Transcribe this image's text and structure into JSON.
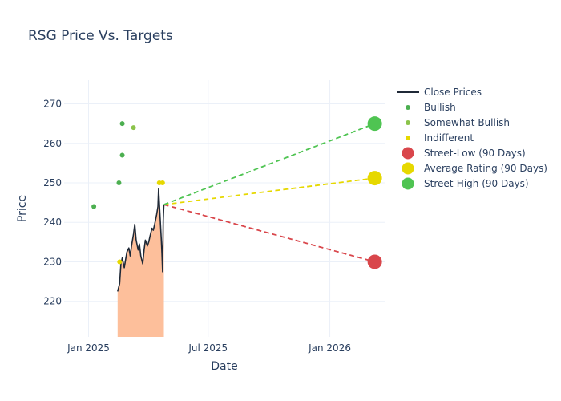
{
  "chart_data": {
    "type": "line",
    "title": "RSG Price Vs. Targets",
    "xlabel": "Date",
    "ylabel": "Price",
    "ylim": [
      211,
      276
    ],
    "xlim": [
      "2024-11-25",
      "2026-03-25"
    ],
    "x_ticks": [
      {
        "date": "2025-01-01",
        "label": "Jan 2025"
      },
      {
        "date": "2025-07-01",
        "label": "Jul 2025"
      },
      {
        "date": "2026-01-01",
        "label": "Jan 2026"
      }
    ],
    "y_ticks": [
      220,
      230,
      240,
      250,
      260,
      270
    ],
    "grid": true,
    "legend_position": "top-right",
    "close_prices": {
      "name": "Close Prices",
      "color": "#1f2937",
      "fill_color": "#fdbf9b",
      "points": [
        [
          "2025-02-14",
          222.5
        ],
        [
          "2025-02-17",
          224.5
        ],
        [
          "2025-02-19",
          229.5
        ],
        [
          "2025-02-21",
          231.0
        ],
        [
          "2025-02-24",
          228.5
        ],
        [
          "2025-02-26",
          230.5
        ],
        [
          "2025-02-28",
          232.5
        ],
        [
          "2025-03-03",
          233.5
        ],
        [
          "2025-03-05",
          231.5
        ],
        [
          "2025-03-07",
          234.0
        ],
        [
          "2025-03-10",
          237.0
        ],
        [
          "2025-03-12",
          239.5
        ],
        [
          "2025-03-14",
          235.5
        ],
        [
          "2025-03-17",
          233.0
        ],
        [
          "2025-03-19",
          234.5
        ],
        [
          "2025-03-21",
          231.5
        ],
        [
          "2025-03-24",
          229.5
        ],
        [
          "2025-03-26",
          233.0
        ],
        [
          "2025-03-28",
          235.5
        ],
        [
          "2025-03-31",
          234.0
        ],
        [
          "2025-04-02",
          235.0
        ],
        [
          "2025-04-04",
          236.5
        ],
        [
          "2025-04-07",
          238.5
        ],
        [
          "2025-04-09",
          238.0
        ],
        [
          "2025-04-11",
          239.5
        ],
        [
          "2025-04-14",
          242.0
        ],
        [
          "2025-04-16",
          244.0
        ],
        [
          "2025-04-17",
          248.5
        ],
        [
          "2025-04-21",
          236.0
        ],
        [
          "2025-04-22",
          232.0
        ],
        [
          "2025-04-23",
          227.5
        ],
        [
          "2025-04-24",
          240.5
        ],
        [
          "2025-04-25",
          244.5
        ]
      ]
    },
    "ratings": [
      {
        "name": "Bullish",
        "color": "#4caf50",
        "points": [
          [
            "2025-01-09",
            244
          ],
          [
            "2025-02-16",
            250
          ],
          [
            "2025-02-21",
            265
          ],
          [
            "2025-02-21",
            257
          ]
        ]
      },
      {
        "name": "Somewhat Bullish",
        "color": "#8bc34a",
        "points": [
          [
            "2025-03-10",
            264
          ]
        ]
      },
      {
        "name": "Indifferent",
        "color": "#e6d800",
        "points": [
          [
            "2025-02-17",
            230
          ],
          [
            "2025-04-18",
            250
          ],
          [
            "2025-04-23",
            250
          ]
        ]
      }
    ],
    "targets": {
      "start": [
        "2025-04-25",
        244.5
      ],
      "end_date": "2026-03-10",
      "lines": [
        {
          "name": "Street-Low (90 Days)",
          "color": "#d9464b",
          "value": 230
        },
        {
          "name": "Average Rating (90 Days)",
          "color": "#e6d800",
          "value": 251.2
        },
        {
          "name": "Street-High (90 Days)",
          "color": "#4fc452",
          "value": 265
        }
      ]
    }
  }
}
